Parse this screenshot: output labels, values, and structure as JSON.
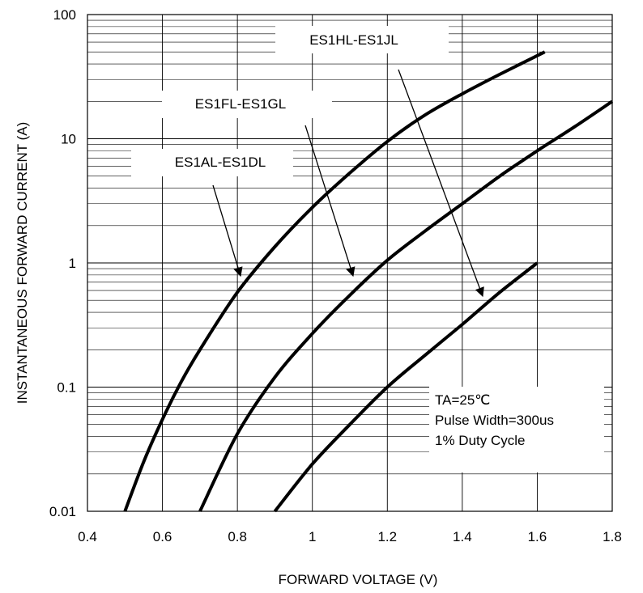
{
  "chart_data": {
    "type": "line",
    "xlabel": "FORWARD VOLTAGE (V)",
    "ylabel": "INSTANTANEOUS FORWARD CURRENT (A)",
    "xlim": [
      0.4,
      1.8
    ],
    "ylim": [
      0.01,
      100
    ],
    "y_scale": "log",
    "grid": true,
    "x_ticks": [
      "0.4",
      "0.6",
      "0.8",
      "1",
      "1.2",
      "1.4",
      "1.6",
      "1.8"
    ],
    "y_ticks": [
      "0.01",
      "0.1",
      "1",
      "10",
      "100"
    ],
    "series": [
      {
        "name": "ES1AL-ES1DL",
        "x": [
          0.5,
          0.55,
          0.6,
          0.65,
          0.7,
          0.8,
          0.9,
          1.0,
          1.1,
          1.2,
          1.3,
          1.4,
          1.5,
          1.62
        ],
        "y": [
          0.01,
          0.025,
          0.055,
          0.11,
          0.2,
          0.58,
          1.35,
          2.8,
          5.3,
          9.5,
          15.5,
          23,
          33,
          50
        ]
      },
      {
        "name": "ES1FL-ES1GL",
        "x": [
          0.7,
          0.8,
          0.9,
          1.0,
          1.1,
          1.2,
          1.3,
          1.4,
          1.5,
          1.6,
          1.7,
          1.8
        ],
        "y": [
          0.01,
          0.042,
          0.12,
          0.27,
          0.55,
          1.05,
          1.8,
          3.0,
          5.0,
          8.0,
          12.5,
          20
        ]
      },
      {
        "name": "ES1HL-ES1JL",
        "x": [
          0.9,
          1.0,
          1.1,
          1.2,
          1.3,
          1.4,
          1.5,
          1.6
        ],
        "y": [
          0.01,
          0.024,
          0.05,
          0.1,
          0.18,
          0.32,
          0.58,
          1.0
        ]
      }
    ],
    "annotations": {
      "conditions": [
        "TA=25℃",
        "Pulse Width=300us",
        "1% Duty Cycle"
      ]
    }
  }
}
